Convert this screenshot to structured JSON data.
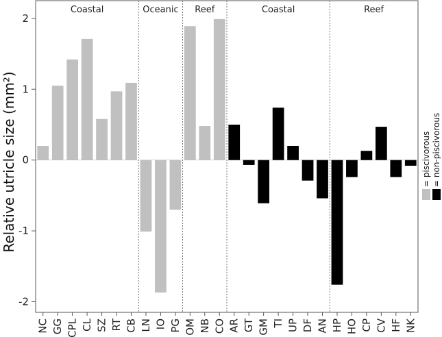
{
  "chart_data": {
    "type": "bar",
    "ylabel": "Relative utricle size (mm²)",
    "xlabel": "",
    "ylim": [
      -2.15,
      2.25
    ],
    "yticks": [
      -2,
      -1,
      0,
      1,
      2
    ],
    "grid": false,
    "legend_placement": "right",
    "categories": [
      "NC",
      "GG",
      "CPL",
      "CL",
      "SZ",
      "RT",
      "CB",
      "LN",
      "IO",
      "PG",
      "OM",
      "NB",
      "CO",
      "AR",
      "GT",
      "GM",
      "TI",
      "UP",
      "DF",
      "AN",
      "HP",
      "HO",
      "CP",
      "CV",
      "HF",
      "NK"
    ],
    "values": [
      0.2,
      1.05,
      1.42,
      1.71,
      0.58,
      0.97,
      1.09,
      -1.01,
      -1.87,
      -0.7,
      1.89,
      0.48,
      1.99,
      0.5,
      -0.07,
      -0.61,
      0.74,
      0.2,
      -0.29,
      -0.54,
      -1.76,
      -0.24,
      0.13,
      0.47,
      -0.24,
      -0.08
    ],
    "diet": [
      "p",
      "p",
      "p",
      "p",
      "p",
      "p",
      "p",
      "p",
      "p",
      "p",
      "p",
      "p",
      "p",
      "n",
      "n",
      "n",
      "n",
      "n",
      "n",
      "n",
      "n",
      "n",
      "n",
      "n",
      "n",
      "n"
    ],
    "groups": [
      {
        "label": "Coastal",
        "start": 0,
        "end": 6
      },
      {
        "label": "Oceanic",
        "start": 7,
        "end": 9
      },
      {
        "label": "Reef",
        "start": 10,
        "end": 12
      },
      {
        "label": "Coastal",
        "start": 13,
        "end": 19
      },
      {
        "label": "Reef",
        "start": 20,
        "end": 25
      }
    ],
    "legend": [
      {
        "key": "p",
        "label": "= piscivorous",
        "color": "#c0c0c0"
      },
      {
        "key": "n",
        "label": "= non-piscivorous",
        "color": "#000000"
      }
    ]
  }
}
